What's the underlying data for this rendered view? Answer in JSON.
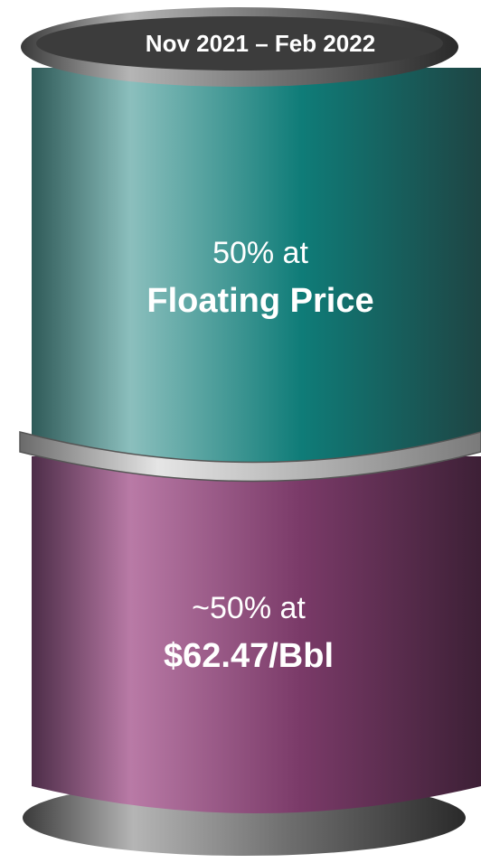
{
  "header": {
    "title": "Nov 2021 – Feb 2022"
  },
  "segments": [
    {
      "line1": "50% at",
      "line2": "Floating Price"
    },
    {
      "line1": "~50% at",
      "line2": "$62.47/Bbl"
    }
  ]
}
